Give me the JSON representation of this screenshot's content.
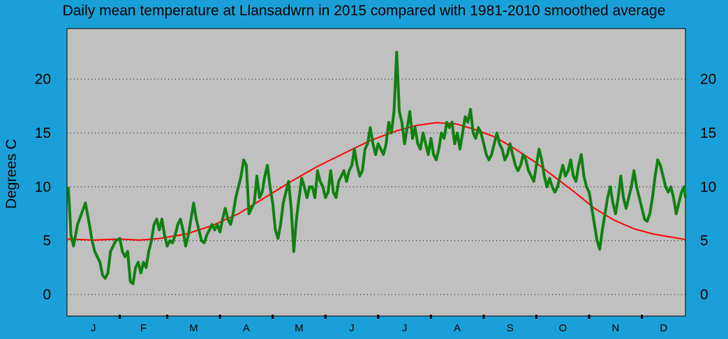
{
  "chart_data": {
    "type": "line",
    "title": "Daily mean temperature at Llansadwrn in 2015 compared with 1981-2010 smoothed average",
    "ylabel": "Degrees  C",
    "xlabel": "",
    "ylim": [
      -2,
      24.7
    ],
    "yticks": [
      0,
      5,
      10,
      15,
      20
    ],
    "grid": true,
    "month_labels": [
      "J",
      "F",
      "M",
      "A",
      "M",
      "J",
      "J",
      "A",
      "S",
      "O",
      "N",
      "D"
    ],
    "colors": {
      "plot_bg": "#c0c0c0",
      "daily": "#108010",
      "average": "#ff0000",
      "outer_bg": "#1aa0d8"
    },
    "series": [
      {
        "key": "daily_2015",
        "points": [
          [
            1,
            10
          ],
          [
            3,
            5.5
          ],
          [
            5,
            4.5
          ],
          [
            8,
            6.5
          ],
          [
            11,
            7.5
          ],
          [
            14,
            8.5
          ],
          [
            17,
            6.5
          ],
          [
            19,
            5
          ],
          [
            21,
            4
          ],
          [
            23,
            3.5
          ],
          [
            25,
            3
          ],
          [
            27,
            1.8
          ],
          [
            29,
            1.5
          ],
          [
            31,
            2
          ],
          [
            33,
            4
          ],
          [
            35,
            4.5
          ],
          [
            37,
            5
          ],
          [
            40,
            5.2
          ],
          [
            42,
            4
          ],
          [
            44,
            3.5
          ],
          [
            46,
            4
          ],
          [
            48,
            1.2
          ],
          [
            50,
            1
          ],
          [
            52,
            2.5
          ],
          [
            54,
            3
          ],
          [
            56,
            2
          ],
          [
            58,
            3
          ],
          [
            60,
            2.5
          ],
          [
            62,
            4
          ],
          [
            64,
            5
          ],
          [
            66,
            6.5
          ],
          [
            68,
            7
          ],
          [
            70,
            6
          ],
          [
            72,
            7
          ],
          [
            74,
            5.5
          ],
          [
            76,
            4.5
          ],
          [
            78,
            5
          ],
          [
            80,
            4.8
          ],
          [
            82,
            5.5
          ],
          [
            84,
            6.5
          ],
          [
            86,
            7
          ],
          [
            88,
            6
          ],
          [
            90,
            4.5
          ],
          [
            92,
            5.5
          ],
          [
            94,
            7
          ],
          [
            96,
            8.5
          ],
          [
            98,
            7
          ],
          [
            100,
            6
          ],
          [
            102,
            5
          ],
          [
            104,
            4.8
          ],
          [
            106,
            5.5
          ],
          [
            108,
            6
          ],
          [
            110,
            6.5
          ],
          [
            112,
            6
          ],
          [
            114,
            6.5
          ],
          [
            116,
            5.8
          ],
          [
            118,
            7
          ],
          [
            120,
            8
          ],
          [
            122,
            7
          ],
          [
            124,
            6.5
          ],
          [
            126,
            7.5
          ],
          [
            128,
            9
          ],
          [
            130,
            10
          ],
          [
            132,
            11
          ],
          [
            134,
            12.5
          ],
          [
            136,
            12
          ],
          [
            138,
            7.5
          ],
          [
            140,
            8
          ],
          [
            142,
            8.5
          ],
          [
            144,
            11
          ],
          [
            146,
            9
          ],
          [
            148,
            9.5
          ],
          [
            150,
            11
          ],
          [
            152,
            12
          ],
          [
            154,
            10
          ],
          [
            156,
            8.5
          ],
          [
            158,
            6
          ],
          [
            160,
            5.2
          ],
          [
            162,
            6.5
          ],
          [
            164,
            8.5
          ],
          [
            166,
            9.5
          ],
          [
            168,
            10.5
          ],
          [
            170,
            8
          ],
          [
            172,
            4
          ],
          [
            174,
            7
          ],
          [
            176,
            9
          ],
          [
            178,
            10.8
          ],
          [
            180,
            10
          ],
          [
            182,
            9
          ],
          [
            184,
            10
          ],
          [
            186,
            10
          ],
          [
            188,
            9
          ],
          [
            190,
            11.5
          ],
          [
            192,
            10.5
          ],
          [
            194,
            10
          ],
          [
            196,
            9
          ],
          [
            198,
            9.5
          ],
          [
            200,
            11.5
          ],
          [
            202,
            9.5
          ],
          [
            204,
            9
          ],
          [
            206,
            10.5
          ],
          [
            208,
            11
          ],
          [
            210,
            11.5
          ],
          [
            212,
            10.5
          ],
          [
            214,
            11.5
          ],
          [
            216,
            12
          ],
          [
            218,
            13.5
          ],
          [
            220,
            12
          ],
          [
            222,
            11
          ],
          [
            224,
            11.5
          ],
          [
            226,
            13.5
          ],
          [
            228,
            14
          ],
          [
            230,
            15.5
          ],
          [
            232,
            14
          ],
          [
            234,
            13
          ],
          [
            236,
            14
          ],
          [
            238,
            13.5
          ],
          [
            240,
            13
          ],
          [
            242,
            14
          ],
          [
            244,
            16
          ],
          [
            246,
            15
          ],
          [
            248,
            17
          ],
          [
            250,
            22.5
          ],
          [
            252,
            17
          ],
          [
            254,
            16
          ],
          [
            256,
            14
          ],
          [
            258,
            15.5
          ],
          [
            260,
            17
          ],
          [
            262,
            14.5
          ],
          [
            264,
            15.5
          ],
          [
            266,
            14
          ],
          [
            268,
            13.5
          ],
          [
            270,
            15
          ],
          [
            272,
            14
          ],
          [
            274,
            13
          ],
          [
            276,
            14.5
          ],
          [
            278,
            13
          ],
          [
            280,
            12.5
          ],
          [
            282,
            13.5
          ],
          [
            284,
            15
          ],
          [
            286,
            14.5
          ],
          [
            288,
            16
          ],
          [
            290,
            15.5
          ],
          [
            292,
            16
          ],
          [
            294,
            14
          ],
          [
            296,
            15
          ],
          [
            298,
            13.5
          ],
          [
            300,
            15
          ],
          [
            302,
            16.5
          ],
          [
            304,
            16
          ],
          [
            306,
            17.2
          ],
          [
            308,
            15
          ],
          [
            310,
            14.5
          ],
          [
            312,
            15.5
          ],
          [
            314,
            15
          ],
          [
            316,
            14
          ],
          [
            318,
            13
          ],
          [
            320,
            12.5
          ],
          [
            322,
            13
          ],
          [
            324,
            14
          ],
          [
            326,
            15
          ],
          [
            328,
            14
          ],
          [
            330,
            13.5
          ],
          [
            332,
            12.5
          ],
          [
            334,
            13
          ],
          [
            336,
            14
          ],
          [
            338,
            13
          ],
          [
            340,
            12
          ],
          [
            342,
            11.5
          ],
          [
            344,
            12
          ],
          [
            346,
            13
          ],
          [
            348,
            12.5
          ],
          [
            350,
            11.5
          ],
          [
            352,
            11
          ],
          [
            354,
            10.5
          ],
          [
            356,
            12
          ],
          [
            358,
            13.5
          ],
          [
            360,
            12.5
          ],
          [
            362,
            11
          ],
          [
            364,
            10
          ],
          [
            366,
            10.8
          ],
          [
            368,
            10
          ],
          [
            370,
            9.5
          ],
          [
            372,
            10
          ],
          [
            374,
            11
          ],
          [
            376,
            12
          ],
          [
            378,
            11
          ],
          [
            380,
            11.5
          ],
          [
            382,
            12.5
          ],
          [
            384,
            11
          ],
          [
            386,
            10.5
          ],
          [
            388,
            12
          ],
          [
            390,
            13
          ],
          [
            392,
            11
          ],
          [
            394,
            10
          ],
          [
            396,
            9.5
          ],
          [
            398,
            8
          ],
          [
            400,
            6.5
          ],
          [
            402,
            5
          ],
          [
            404,
            4.2
          ],
          [
            406,
            6
          ],
          [
            408,
            7.5
          ],
          [
            410,
            9
          ],
          [
            412,
            10
          ],
          [
            414,
            8.5
          ],
          [
            416,
            7.5
          ],
          [
            418,
            9
          ],
          [
            420,
            11
          ],
          [
            422,
            9
          ],
          [
            424,
            8
          ],
          [
            426,
            9
          ],
          [
            428,
            10
          ],
          [
            430,
            11.5
          ],
          [
            432,
            10
          ],
          [
            434,
            9
          ],
          [
            436,
            8
          ],
          [
            438,
            7
          ],
          [
            440,
            6.8
          ],
          [
            442,
            7.5
          ],
          [
            444,
            9
          ],
          [
            446,
            11
          ],
          [
            448,
            12.5
          ],
          [
            450,
            12
          ],
          [
            452,
            11
          ],
          [
            454,
            10
          ],
          [
            456,
            9.5
          ],
          [
            458,
            10
          ],
          [
            460,
            9
          ],
          [
            462,
            7.5
          ],
          [
            464,
            8.5
          ],
          [
            466,
            9.5
          ],
          [
            468,
            10
          ],
          [
            469,
            9
          ]
        ]
      },
      {
        "key": "average_1981_2010",
        "points": [
          [
            0,
            5.15
          ],
          [
            20,
            5.05
          ],
          [
            40,
            5.15
          ],
          [
            55,
            5.05
          ],
          [
            70,
            5.2
          ],
          [
            90,
            5.6
          ],
          [
            110,
            6.4
          ],
          [
            130,
            7.5
          ],
          [
            150,
            9.0
          ],
          [
            170,
            10.5
          ],
          [
            190,
            11.9
          ],
          [
            210,
            13.1
          ],
          [
            230,
            14.3
          ],
          [
            250,
            15.2
          ],
          [
            265,
            15.7
          ],
          [
            280,
            15.95
          ],
          [
            295,
            15.85
          ],
          [
            310,
            15.3
          ],
          [
            325,
            14.6
          ],
          [
            340,
            13.5
          ],
          [
            355,
            12.3
          ],
          [
            370,
            10.9
          ],
          [
            385,
            9.5
          ],
          [
            400,
            8.0
          ],
          [
            415,
            6.9
          ],
          [
            430,
            6.1
          ],
          [
            445,
            5.6
          ],
          [
            460,
            5.3
          ],
          [
            469,
            5.1
          ]
        ]
      }
    ]
  }
}
